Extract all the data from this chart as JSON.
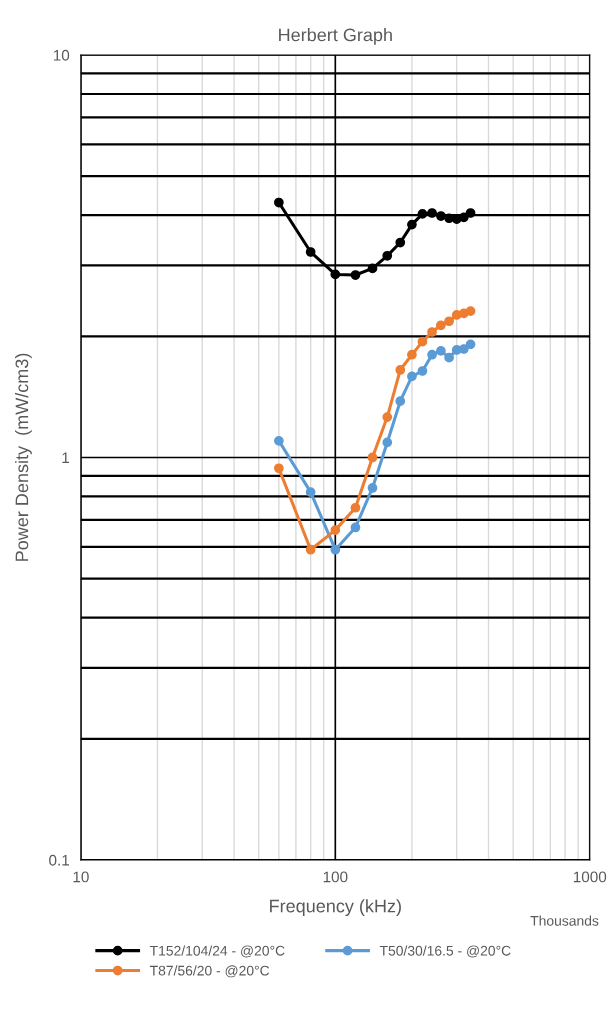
{
  "chart_data": {
    "type": "line",
    "title": "Herbert Graph",
    "xlabel": "Frequency (kHz)",
    "ylabel": "Power Density  (mW/cm3)",
    "annotations": [
      "Thousands"
    ],
    "x": [
      60,
      80,
      100,
      120,
      140,
      160,
      180,
      200,
      220,
      240,
      260,
      280,
      300,
      320,
      340
    ],
    "series": [
      {
        "name": "T152/104/24 - @20°C",
        "color": "#000000",
        "values": [
          4.3,
          3.24,
          2.85,
          2.84,
          2.95,
          3.17,
          3.42,
          3.79,
          4.03,
          4.05,
          3.98,
          3.93,
          3.91,
          3.95,
          4.05
        ]
      },
      {
        "name": "T50/30/16.5 - @20°C",
        "color": "#5b9bd5",
        "values": [
          1.1,
          0.82,
          0.59,
          0.67,
          0.84,
          1.09,
          1.38,
          1.59,
          1.64,
          1.8,
          1.84,
          1.77,
          1.85,
          1.86,
          1.91
        ]
      },
      {
        "name": "T87/56/20 - @20°C",
        "color": "#ed7d31",
        "values": [
          0.94,
          0.59,
          0.66,
          0.75,
          1.0,
          1.26,
          1.65,
          1.8,
          1.94,
          2.05,
          2.13,
          2.18,
          2.26,
          2.28,
          2.31
        ]
      }
    ],
    "log": "xy",
    "xlim": [
      10,
      1000
    ],
    "ylim": [
      0.1,
      10
    ],
    "xticks": [
      10,
      100,
      1000
    ],
    "yticks": [
      0.1,
      1,
      10
    ],
    "grid": true,
    "legend": "bottom",
    "marker": "circle",
    "line_style": "solid"
  }
}
